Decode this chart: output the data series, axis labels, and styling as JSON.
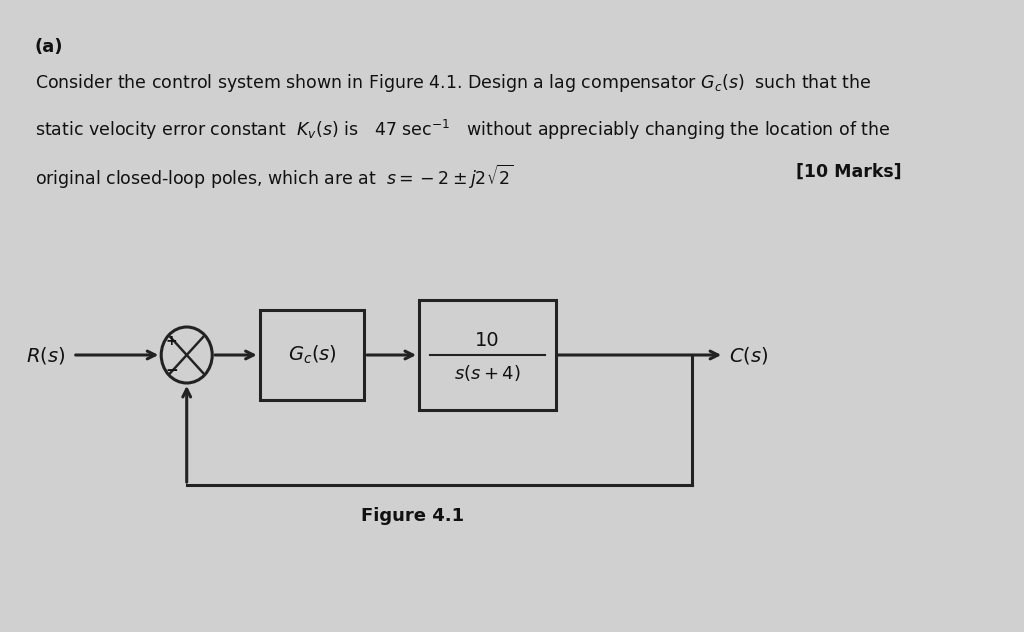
{
  "bg_color": "#d0d0d0",
  "title_a": "(a)",
  "line1": "Consider the control system shown in Figure 4.1. Design a lag compensator $G_c(s)$  such that the",
  "line2": "static velocity error constant  $K_v(s)$ is   47 sec$^{-1}$   without appreciably changing the location of the",
  "line3": "original closed-loop poles, which are at  $s = -2 \\pm j2\\sqrt{2}$",
  "marks": "[10 Marks]",
  "figure_label": "Figure 4.1",
  "Rs_label": "$R(s)$",
  "Cs_label": "$C(s)$",
  "Gc_label": "$G_c(s)$",
  "plant_num": "10",
  "plant_den": "$s(s + 4)$",
  "text_color": "#111111",
  "box_color": "#222222",
  "arrow_color": "#222222",
  "line_lw": 2.2
}
